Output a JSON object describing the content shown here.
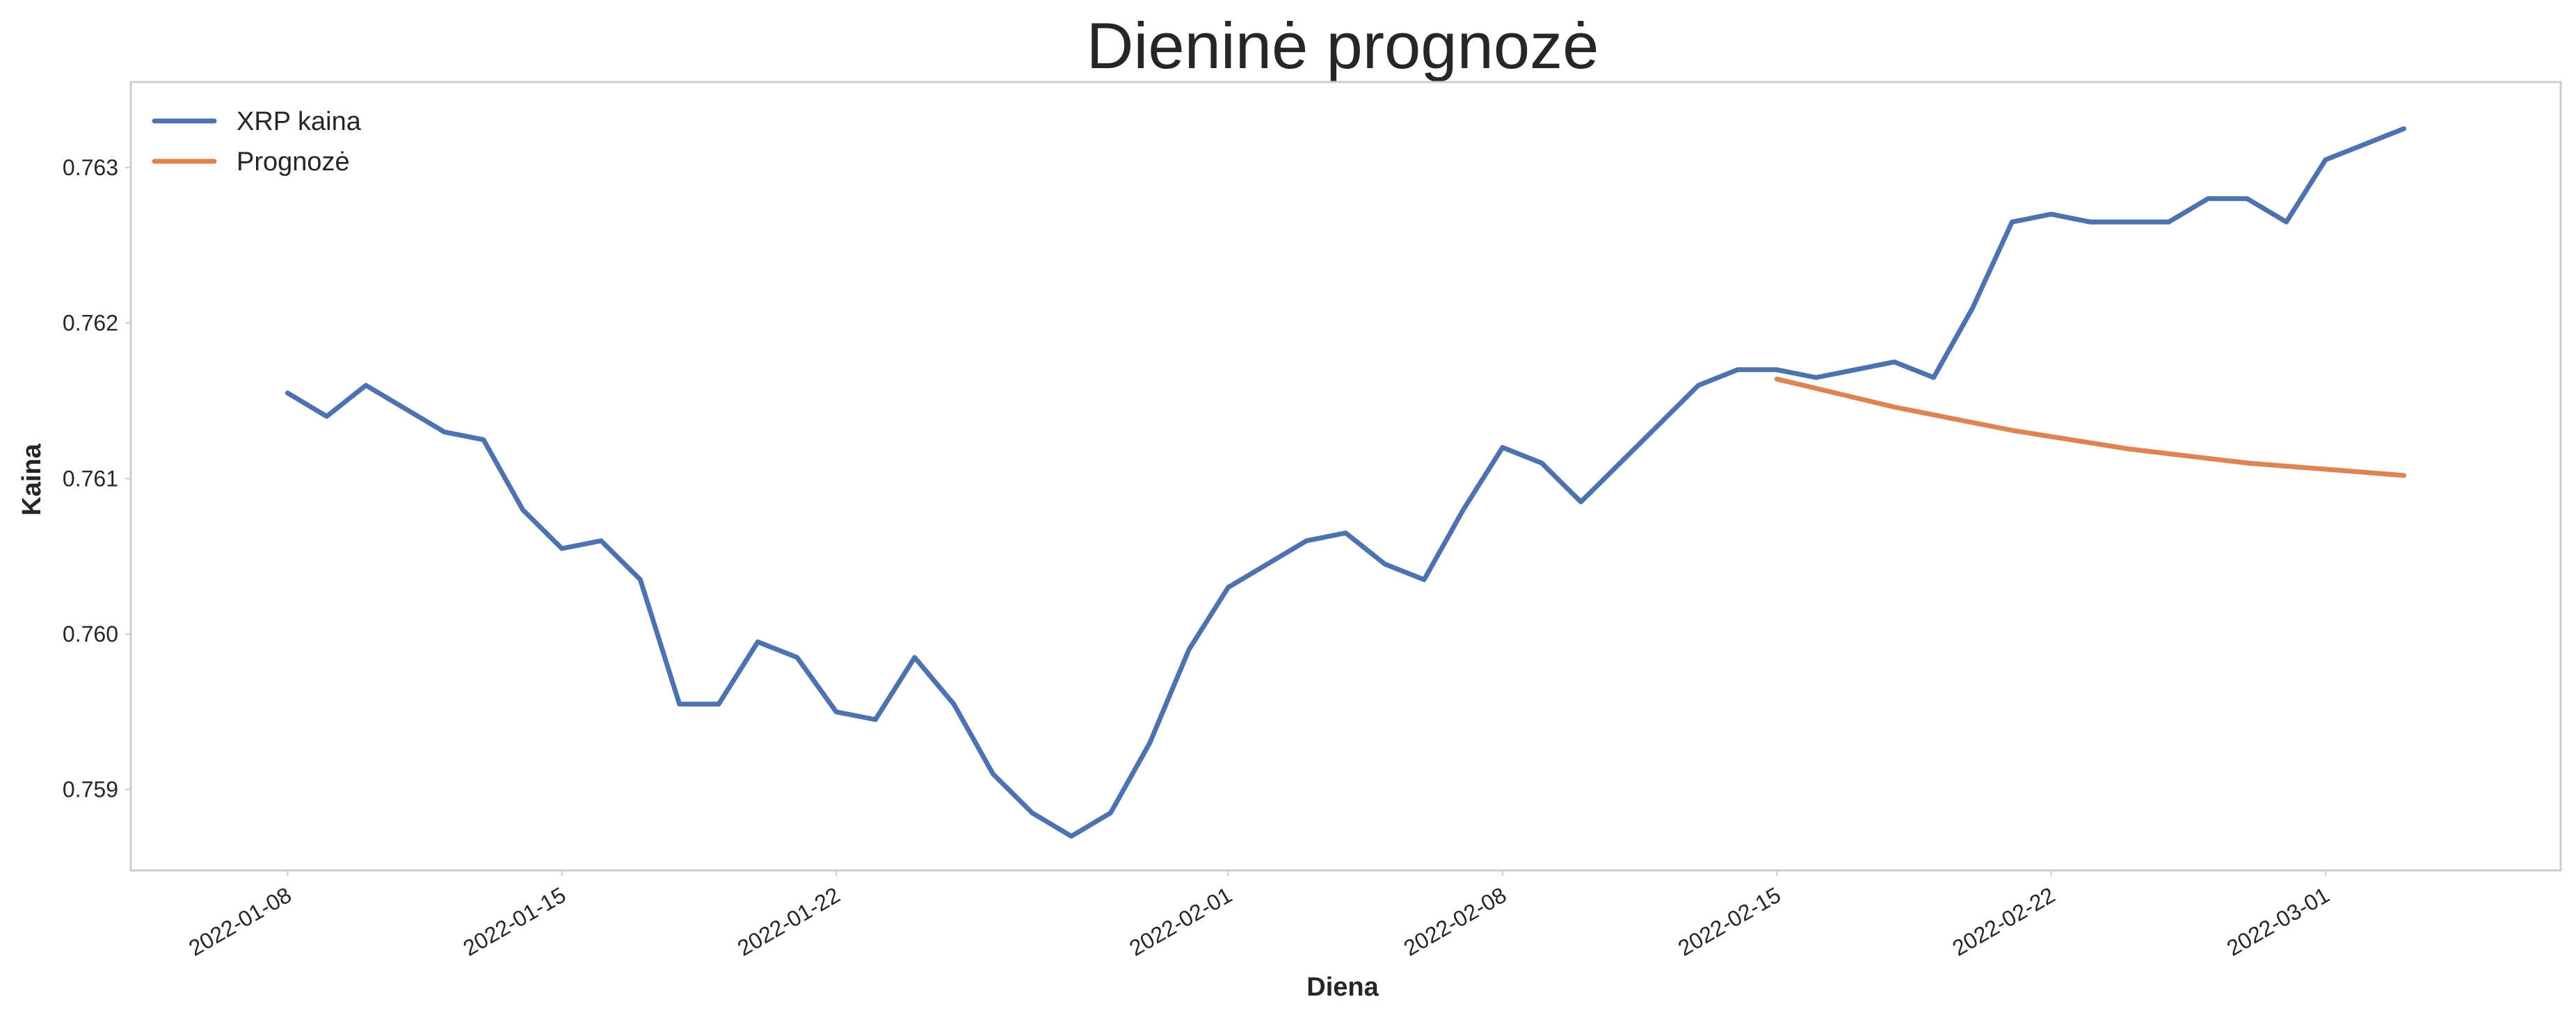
{
  "chart_data": {
    "type": "line",
    "title": "Dieninė prognozė",
    "xlabel": "Diena",
    "ylabel": "Kaina",
    "xlim": [
      "2022-01-04",
      "2022-03-07"
    ],
    "ylim": [
      0.75848,
      0.76355
    ],
    "grid": false,
    "legend": "top-left",
    "x_ticks": [
      "2022-01-08",
      "2022-01-15",
      "2022-01-22",
      "2022-02-01",
      "2022-02-08",
      "2022-02-15",
      "2022-02-22",
      "2022-03-01"
    ],
    "y_ticks": [
      0.759,
      0.76,
      0.761,
      0.762,
      0.763
    ],
    "y_tick_labels": [
      "0.759",
      "0.760",
      "0.761",
      "0.762",
      "0.763"
    ],
    "series": [
      {
        "name": "XRP kaina",
        "color": "#4c72b0",
        "points": [
          [
            "2022-01-08",
            0.76155
          ],
          [
            "2022-01-09",
            0.7614
          ],
          [
            "2022-01-10",
            0.7616
          ],
          [
            "2022-01-11",
            0.76145
          ],
          [
            "2022-01-12",
            0.7613
          ],
          [
            "2022-01-13",
            0.76125
          ],
          [
            "2022-01-14",
            0.7608
          ],
          [
            "2022-01-15",
            0.76055
          ],
          [
            "2022-01-16",
            0.7606
          ],
          [
            "2022-01-17",
            0.76035
          ],
          [
            "2022-01-18",
            0.75955
          ],
          [
            "2022-01-19",
            0.75955
          ],
          [
            "2022-01-20",
            0.75995
          ],
          [
            "2022-01-21",
            0.75985
          ],
          [
            "2022-01-22",
            0.7595
          ],
          [
            "2022-01-23",
            0.75945
          ],
          [
            "2022-01-24",
            0.75985
          ],
          [
            "2022-01-25",
            0.75955
          ],
          [
            "2022-01-26",
            0.7591
          ],
          [
            "2022-01-27",
            0.75885
          ],
          [
            "2022-01-28",
            0.7587
          ],
          [
            "2022-01-29",
            0.75885
          ],
          [
            "2022-01-30",
            0.7593
          ],
          [
            "2022-01-31",
            0.7599
          ],
          [
            "2022-02-01",
            0.7603
          ],
          [
            "2022-02-02",
            0.76045
          ],
          [
            "2022-02-03",
            0.7606
          ],
          [
            "2022-02-04",
            0.76065
          ],
          [
            "2022-02-05",
            0.76045
          ],
          [
            "2022-02-06",
            0.76035
          ],
          [
            "2022-02-07",
            0.7608
          ],
          [
            "2022-02-08",
            0.7612
          ],
          [
            "2022-02-09",
            0.7611
          ],
          [
            "2022-02-10",
            0.76085
          ],
          [
            "2022-02-11",
            0.7611
          ],
          [
            "2022-02-12",
            0.76135
          ],
          [
            "2022-02-13",
            0.7616
          ],
          [
            "2022-02-14",
            0.7617
          ],
          [
            "2022-02-15",
            0.7617
          ],
          [
            "2022-02-16",
            0.76165
          ],
          [
            "2022-02-17",
            0.7617
          ],
          [
            "2022-02-18",
            0.76175
          ],
          [
            "2022-02-19",
            0.76165
          ],
          [
            "2022-02-20",
            0.7621
          ],
          [
            "2022-02-21",
            0.76265
          ],
          [
            "2022-02-22",
            0.7627
          ],
          [
            "2022-02-23",
            0.76265
          ],
          [
            "2022-02-24",
            0.76265
          ],
          [
            "2022-02-25",
            0.76265
          ],
          [
            "2022-02-26",
            0.7628
          ],
          [
            "2022-02-27",
            0.7628
          ],
          [
            "2022-02-28",
            0.76265
          ],
          [
            "2022-03-01",
            0.76305
          ],
          [
            "2022-03-02",
            0.76315
          ],
          [
            "2022-03-03",
            0.76325
          ]
        ]
      },
      {
        "name": "Prognozė",
        "color": "#dd8452",
        "points": [
          [
            "2022-02-15",
            0.76164
          ],
          [
            "2022-02-16",
            0.76158
          ],
          [
            "2022-02-17",
            0.76152
          ],
          [
            "2022-02-18",
            0.76146
          ],
          [
            "2022-02-19",
            0.76141
          ],
          [
            "2022-02-20",
            0.76136
          ],
          [
            "2022-02-21",
            0.76131
          ],
          [
            "2022-02-22",
            0.76127
          ],
          [
            "2022-02-23",
            0.76123
          ],
          [
            "2022-02-24",
            0.76119
          ],
          [
            "2022-02-25",
            0.76116
          ],
          [
            "2022-02-26",
            0.76113
          ],
          [
            "2022-02-27",
            0.7611
          ],
          [
            "2022-02-28",
            0.76108
          ],
          [
            "2022-03-01",
            0.76106
          ],
          [
            "2022-03-02",
            0.76104
          ],
          [
            "2022-03-03",
            0.76102
          ]
        ]
      }
    ]
  }
}
